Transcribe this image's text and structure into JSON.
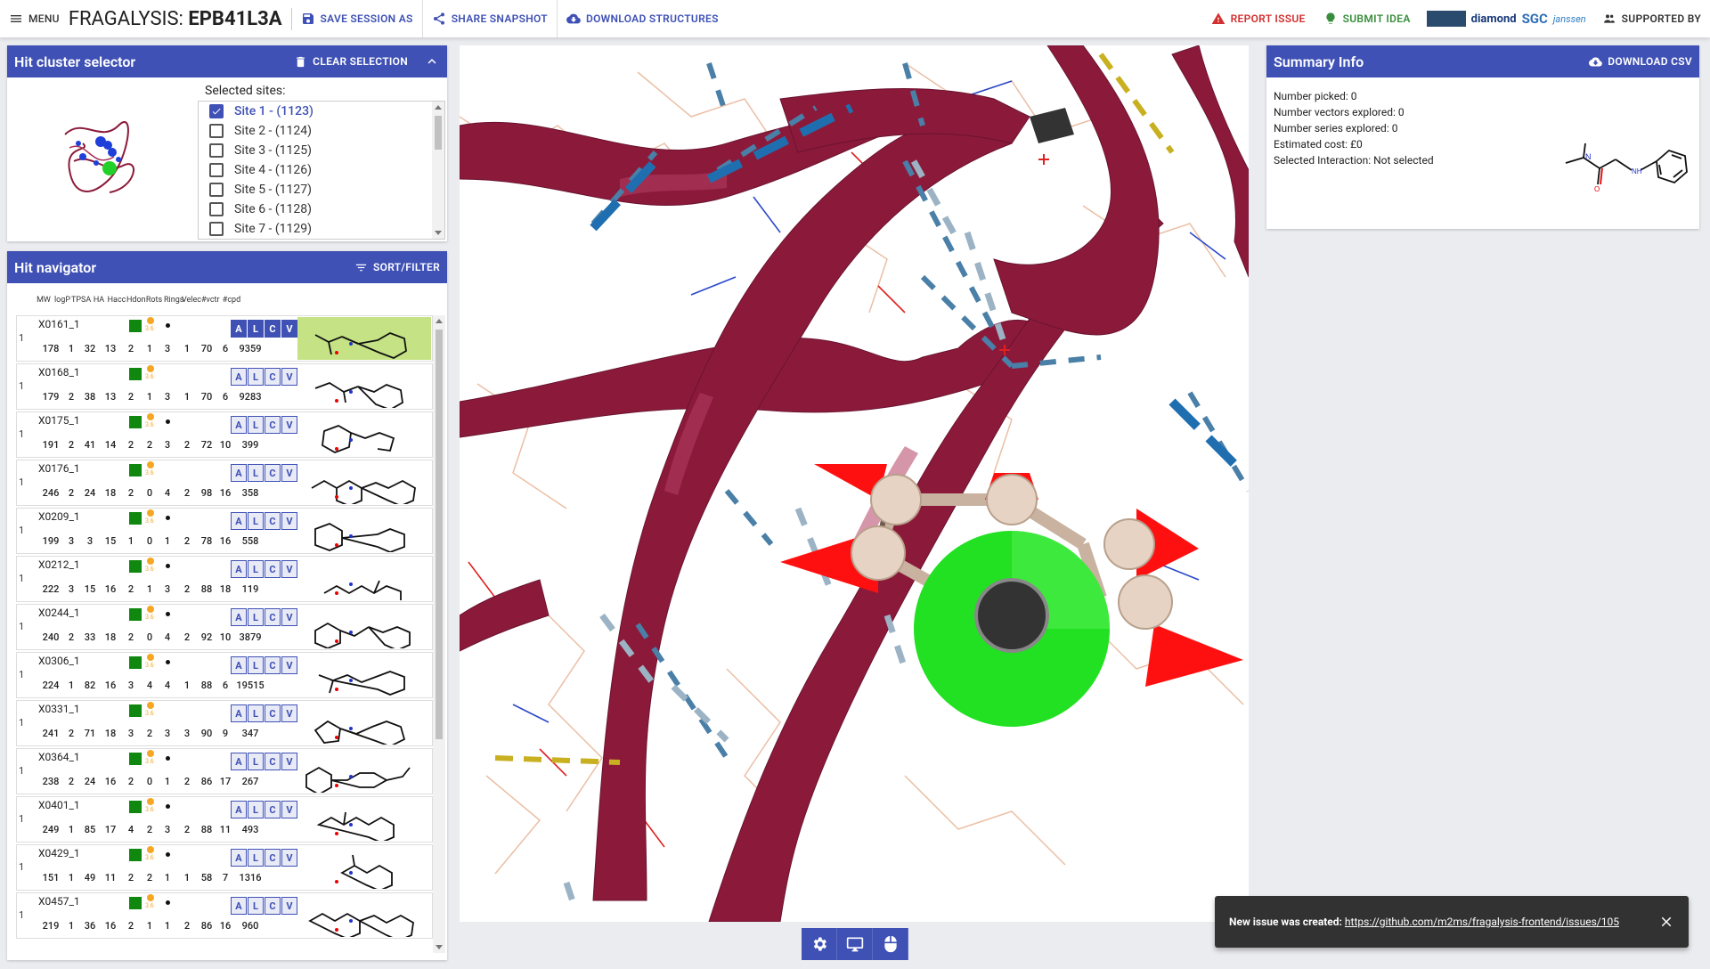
{
  "header": {
    "menu_label": "MENU",
    "title_prefix": "FRAGALYSIS: ",
    "title_target": "EPB41L3A",
    "save_session": "SAVE SESSION AS",
    "share_snapshot": "SHARE SNAPSHOT",
    "download_structures": "DOWNLOAD STRUCTURES",
    "report_issue": "REPORT ISSUE",
    "submit_idea": "SUBMIT IDEA",
    "supported_by": "SUPPORTED BY",
    "logos": {
      "diamond": "diamond",
      "sgc": "SGC",
      "janssen": "janssen"
    }
  },
  "cluster": {
    "title": "Hit cluster selector",
    "clear_label": "CLEAR SELECTION",
    "sites_label": "Selected sites:",
    "sites": [
      {
        "label": "Site 1 - (1123)",
        "checked": true
      },
      {
        "label": "Site 2 - (1124)",
        "checked": false
      },
      {
        "label": "Site 3 - (1125)",
        "checked": false
      },
      {
        "label": "Site 4 - (1126)",
        "checked": false
      },
      {
        "label": "Site 5 - (1127)",
        "checked": false
      },
      {
        "label": "Site 6 - (1128)",
        "checked": false
      },
      {
        "label": "Site 7 - (1129)",
        "checked": false
      }
    ]
  },
  "navigator": {
    "title": "Hit navigator",
    "sort_label": "SORT/FILTER",
    "columns": [
      "MW",
      "logP",
      "TPSA",
      "HA",
      "Hacc",
      "Hdon",
      "Rots",
      "Rings",
      "Velec",
      "#vctr",
      "#cpd"
    ],
    "alcv": [
      "A",
      "L",
      "C",
      "V"
    ],
    "rows": [
      {
        "idx": "1",
        "code": "X0161_1",
        "vals": [
          "178",
          "1",
          "32",
          "13",
          "2",
          "1",
          "3",
          "1",
          "70",
          "6",
          "9359"
        ],
        "selected": true,
        "dot": true
      },
      {
        "idx": "1",
        "code": "X0168_1",
        "vals": [
          "179",
          "2",
          "38",
          "13",
          "2",
          "1",
          "3",
          "1",
          "70",
          "6",
          "9283"
        ],
        "selected": false,
        "dot": false
      },
      {
        "idx": "1",
        "code": "X0175_1",
        "vals": [
          "191",
          "2",
          "41",
          "14",
          "2",
          "2",
          "3",
          "2",
          "72",
          "10",
          "399"
        ],
        "selected": false,
        "dot": true
      },
      {
        "idx": "1",
        "code": "X0176_1",
        "vals": [
          "246",
          "2",
          "24",
          "18",
          "2",
          "0",
          "4",
          "2",
          "98",
          "16",
          "358"
        ],
        "selected": false,
        "dot": false
      },
      {
        "idx": "1",
        "code": "X0209_1",
        "vals": [
          "199",
          "3",
          "3",
          "15",
          "1",
          "0",
          "1",
          "2",
          "78",
          "16",
          "558"
        ],
        "selected": false,
        "dot": true
      },
      {
        "idx": "1",
        "code": "X0212_1",
        "vals": [
          "222",
          "3",
          "15",
          "16",
          "2",
          "1",
          "3",
          "2",
          "88",
          "18",
          "119"
        ],
        "selected": false,
        "dot": true
      },
      {
        "idx": "1",
        "code": "X0244_1",
        "vals": [
          "240",
          "2",
          "33",
          "18",
          "2",
          "0",
          "4",
          "2",
          "92",
          "10",
          "3879"
        ],
        "selected": false,
        "dot": true
      },
      {
        "idx": "1",
        "code": "X0306_1",
        "vals": [
          "224",
          "1",
          "82",
          "16",
          "3",
          "4",
          "4",
          "1",
          "88",
          "6",
          "19515"
        ],
        "selected": false,
        "dot": true
      },
      {
        "idx": "1",
        "code": "X0331_1",
        "vals": [
          "241",
          "2",
          "71",
          "18",
          "3",
          "2",
          "3",
          "3",
          "90",
          "9",
          "347"
        ],
        "selected": false,
        "dot": false
      },
      {
        "idx": "1",
        "code": "X0364_1",
        "vals": [
          "238",
          "2",
          "24",
          "16",
          "2",
          "0",
          "1",
          "2",
          "86",
          "17",
          "267"
        ],
        "selected": false,
        "dot": true
      },
      {
        "idx": "1",
        "code": "X0401_1",
        "vals": [
          "249",
          "1",
          "85",
          "17",
          "4",
          "2",
          "3",
          "2",
          "88",
          "11",
          "493"
        ],
        "selected": false,
        "dot": true
      },
      {
        "idx": "1",
        "code": "X0429_1",
        "vals": [
          "151",
          "1",
          "49",
          "11",
          "2",
          "2",
          "1",
          "1",
          "58",
          "7",
          "1316"
        ],
        "selected": false,
        "dot": true
      },
      {
        "idx": "1",
        "code": "X0457_1",
        "vals": [
          "219",
          "1",
          "36",
          "16",
          "2",
          "1",
          "1",
          "2",
          "86",
          "16",
          "960"
        ],
        "selected": false,
        "dot": true
      }
    ]
  },
  "summary": {
    "title": "Summary Info",
    "download_csv": "DOWNLOAD CSV",
    "lines": [
      "Number picked: 0",
      "Number vectors explored: 0",
      "Number series explored: 0",
      "Estimated cost: £0",
      "Selected Interaction: Not selected"
    ]
  },
  "toast": {
    "message": "New issue was created: ",
    "link": "https://github.com/m2ms/fragalysis-frontend/issues/105"
  },
  "colors": {
    "primary": "#3f51b5",
    "ribbon": "#8b1a3a",
    "ligand_green": "#22e022",
    "vector_red": "#ff0000",
    "selected_row": "#c5e384"
  }
}
